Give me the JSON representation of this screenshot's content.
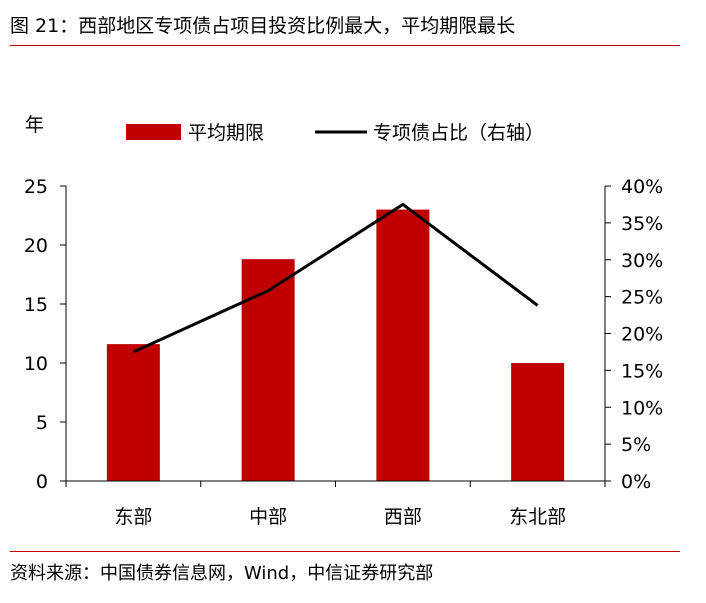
{
  "figure": {
    "title": "图 21：西部地区专项债占项目投资比例最大，平均期限最长",
    "source": "资料来源：中国债券信息网，Wind，中信证券研究部"
  },
  "chart_data": {
    "type": "bar",
    "categories": [
      "东部",
      "中部",
      "西部",
      "东北部"
    ],
    "series": [
      {
        "name": "平均期限",
        "type": "bar",
        "axis": "left",
        "color": "#c00000",
        "values": [
          11.6,
          18.8,
          23.0,
          10.0
        ]
      },
      {
        "name": "专项债占比（右轴）",
        "type": "line",
        "axis": "right",
        "color": "#000000",
        "values": [
          17.5,
          25.8,
          37.5,
          23.8
        ]
      }
    ],
    "y_left": {
      "unit_label": "年",
      "range": [
        0,
        25
      ],
      "ticks": [
        0,
        5,
        10,
        15,
        20,
        25
      ],
      "tick_labels": [
        "0",
        "5",
        "10",
        "15",
        "20",
        "25"
      ]
    },
    "y_right": {
      "range": [
        0,
        40
      ],
      "ticks": [
        0,
        5,
        10,
        15,
        20,
        25,
        30,
        35,
        40
      ],
      "tick_labels": [
        "0%",
        "5%",
        "10%",
        "15%",
        "20%",
        "25%",
        "30%",
        "35%",
        "40%"
      ]
    },
    "grid": false,
    "legend_position": "top"
  }
}
